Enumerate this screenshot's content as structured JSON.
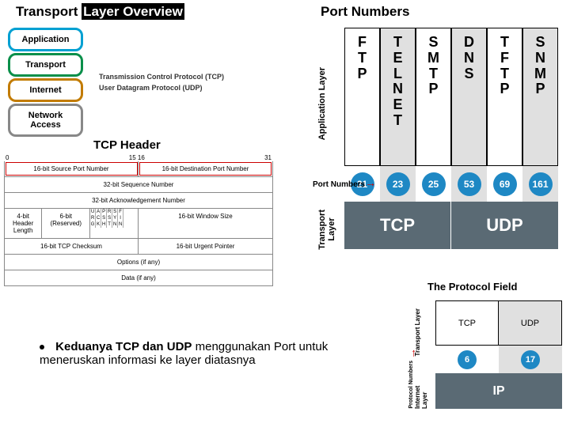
{
  "headers": {
    "left_pre": "Transport ",
    "left_white": "Layer Overview",
    "right": "Port Numbers"
  },
  "layers": {
    "app": "Application",
    "transport": "Transport",
    "internet": "Internet",
    "network_access": "Network\nAccess"
  },
  "proto_labels": {
    "tcp": "Transmission Control Protocol (TCP)",
    "udp": "User Datagram Protocol (UDP)"
  },
  "tcp_header": {
    "title": "TCP Header",
    "bits": [
      "0",
      "15  16",
      "31"
    ],
    "src_port": "16-bit Source Port Number",
    "dst_port": "16-bit Destination Port Number",
    "seq": "32-bit Sequence Number",
    "ack": "32-bit Acknowledgement Number",
    "hlen": "4-bit Header Length",
    "reserved": "6-bit (Reserved)",
    "flags": [
      "U",
      "A",
      "P",
      "R",
      "S",
      "F",
      "R",
      "C",
      "S",
      "S",
      "Y",
      "I",
      "G",
      "K",
      "H",
      "T",
      "N",
      "N"
    ],
    "window": "16-bit Window Size",
    "checksum": "16-bit TCP Checksum",
    "urgent": "16-bit Urgent Pointer",
    "options": "Options (if any)",
    "data": "Data (if any)"
  },
  "bullet": {
    "bold": "Keduanya TCP dan UDP",
    "rest": " menggunakan Port untuk meneruskan informasi ke layer diatasnya"
  },
  "port_numbers": {
    "app_layer_label": "Application Layer",
    "port_label": "Port Numbers",
    "transport_label": "Transport Layer",
    "protocols": [
      "FTP",
      "TELNET",
      "SMTP",
      "DNS",
      "TFTP",
      "SNMP"
    ],
    "ports": [
      "21",
      "23",
      "25",
      "53",
      "69",
      "161"
    ],
    "transports": [
      {
        "name": "TCP",
        "cols": 3
      },
      {
        "name": "UDP",
        "cols": 3
      }
    ],
    "circle_color": "#1e88c4",
    "transport_bg": "#5a6a74"
  },
  "protocol_field": {
    "title": "The Protocol Field",
    "transport_label": "Transport Layer",
    "proto_num_label": "Protocol Numbers",
    "internet_label": "Internet Layer",
    "boxes": [
      {
        "name": "TCP",
        "num": "6"
      },
      {
        "name": "UDP",
        "num": "17"
      }
    ],
    "ip": "IP"
  }
}
